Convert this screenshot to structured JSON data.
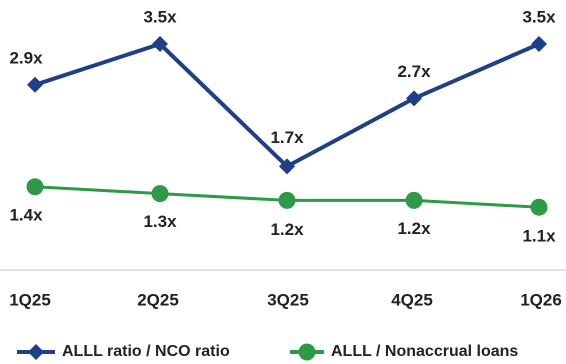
{
  "chart_data": {
    "type": "line",
    "categories": [
      "1Q25",
      "2Q25",
      "3Q25",
      "4Q25",
      "1Q26"
    ],
    "series": [
      {
        "name": "ALLL ratio / NCO ratio",
        "values": [
          2.9,
          3.5,
          1.7,
          2.7,
          3.5
        ],
        "labels": [
          "2.9x",
          "3.5x",
          "1.7x",
          "2.7x",
          "3.5x"
        ],
        "color": "#1f3f86",
        "marker": "diamond"
      },
      {
        "name": "ALLL / Nonaccrual loans",
        "values": [
          1.4,
          1.3,
          1.2,
          1.2,
          1.1
        ],
        "labels": [
          "1.4x",
          "1.3x",
          "1.2x",
          "1.2x",
          "1.1x"
        ],
        "color": "#2e9a47",
        "marker": "circle"
      }
    ],
    "grid": false,
    "legend_position": "bottom"
  }
}
